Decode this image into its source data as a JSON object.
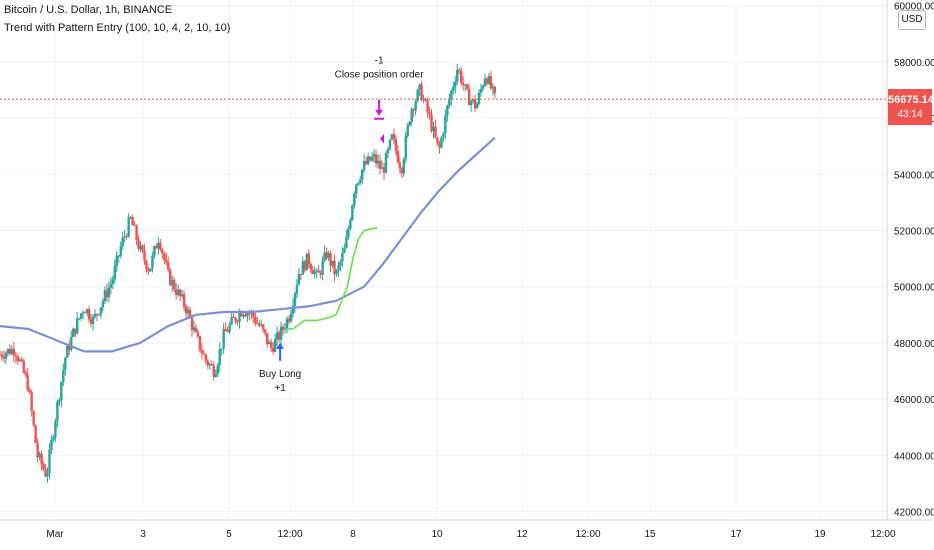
{
  "header": {
    "title": "Bitcoin / U.S. Dollar, 1h, BINANCE",
    "indicator": "Trend with Pattern Entry (100, 10, 4, 2, 10, 10)"
  },
  "currency_label": "USD",
  "price_badge": {
    "price": "56675.14",
    "countdown": "43:14"
  },
  "annotations": {
    "exit_top": "-1",
    "exit_label": "Close position order",
    "entry_label": "Buy Long",
    "entry_bottom": "+1"
  },
  "colors": {
    "up": "#26a69a",
    "down": "#ef5350",
    "ma": "#7b8fd6",
    "trail": "#66e04d",
    "exit": "#c21fd1",
    "entry": "#2962ff"
  },
  "chart_data": {
    "type": "candlestick",
    "title": "Bitcoin / U.S. Dollar, 1h, BINANCE",
    "x_ticks": [
      "Mar",
      "3",
      "5",
      "12:00",
      "8",
      "10",
      "12",
      "12:00",
      "15",
      "17",
      "19",
      "12:00"
    ],
    "y_ticks": [
      42000,
      44000,
      46000,
      48000,
      50000,
      52000,
      54000,
      56000,
      58000,
      60000
    ],
    "y_tick_labels": [
      "42000.00",
      "44000.00",
      "46000.00",
      "48000.00",
      "50000.00",
      "52000.00",
      "54000.00",
      "56000.00",
      "58000.00",
      "60000.00"
    ],
    "ylim": [
      41700,
      60200
    ],
    "last_price": 56675.14,
    "price_path": [
      [
        0.0,
        47600
      ],
      [
        0.8,
        47800
      ],
      [
        1.5,
        46500
      ],
      [
        2.0,
        44000
      ],
      [
        2.5,
        43300
      ],
      [
        3.0,
        45500
      ],
      [
        3.5,
        47500
      ],
      [
        4.0,
        48500
      ],
      [
        4.5,
        49300
      ],
      [
        5.0,
        48800
      ],
      [
        5.5,
        49500
      ],
      [
        6.0,
        50200
      ],
      [
        6.5,
        51500
      ],
      [
        7.0,
        52400
      ],
      [
        7.5,
        51300
      ],
      [
        8.0,
        50600
      ],
      [
        8.5,
        51800
      ],
      [
        9.0,
        50400
      ],
      [
        9.5,
        49800
      ],
      [
        10.0,
        49200
      ],
      [
        10.5,
        48200
      ],
      [
        11.0,
        47400
      ],
      [
        11.5,
        47000
      ],
      [
        12.0,
        48300
      ],
      [
        12.5,
        48800
      ],
      [
        13.0,
        49200
      ],
      [
        13.5,
        49000
      ],
      [
        14.0,
        48500
      ],
      [
        14.5,
        47800
      ],
      [
        15.0,
        48300
      ],
      [
        15.5,
        49000
      ],
      [
        16.0,
        50500
      ],
      [
        16.5,
        51000
      ],
      [
        17.0,
        50300
      ],
      [
        17.5,
        51200
      ],
      [
        18.0,
        50400
      ],
      [
        18.5,
        51400
      ],
      [
        19.0,
        53600
      ],
      [
        19.5,
        54300
      ],
      [
        20.0,
        54600
      ],
      [
        20.5,
        54100
      ],
      [
        21.0,
        55300
      ],
      [
        21.5,
        54200
      ],
      [
        22.0,
        56300
      ],
      [
        22.5,
        57000
      ],
      [
        23.0,
        56000
      ],
      [
        23.5,
        54800
      ],
      [
        24.0,
        56500
      ],
      [
        24.5,
        57800
      ],
      [
        25.0,
        56800
      ],
      [
        25.5,
        56400
      ],
      [
        26.0,
        57600
      ],
      [
        26.5,
        56675
      ]
    ],
    "series": [
      {
        "values": [
          [
            0.0,
            48600
          ],
          [
            1.5,
            48500
          ],
          [
            3.0,
            48100
          ],
          [
            4.5,
            47700
          ],
          [
            6.0,
            47700
          ],
          [
            7.5,
            48000
          ],
          [
            9.0,
            48600
          ],
          [
            10.5,
            49000
          ],
          [
            12.0,
            49100
          ],
          [
            13.5,
            49100
          ],
          [
            15.0,
            49200
          ],
          [
            16.5,
            49300
          ],
          [
            18.0,
            49500
          ],
          [
            19.5,
            50000
          ],
          [
            20.5,
            50800
          ],
          [
            21.5,
            51700
          ],
          [
            22.5,
            52600
          ],
          [
            23.5,
            53400
          ],
          [
            24.5,
            54100
          ],
          [
            25.5,
            54700
          ],
          [
            26.5,
            55300
          ]
        ]
      },
      {
        "values": [
          [
            15.3,
            48500
          ],
          [
            15.7,
            48500
          ],
          [
            16.3,
            48800
          ],
          [
            17.0,
            48800
          ],
          [
            17.6,
            48900
          ],
          [
            18.0,
            49000
          ],
          [
            18.6,
            50000
          ],
          [
            18.9,
            51000
          ],
          [
            19.2,
            51700
          ],
          [
            19.5,
            52000
          ],
          [
            20.2,
            52100
          ]
        ]
      }
    ],
    "markers": [
      {
        "type": "exit",
        "x": 20.3,
        "price": 55300
      },
      {
        "type": "entry",
        "x": 15.0,
        "price": 48500
      }
    ],
    "x_axis_note": "x in chart bar-index units (0 = left edge)"
  }
}
